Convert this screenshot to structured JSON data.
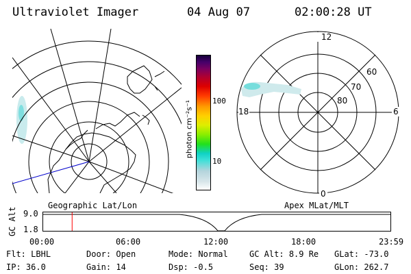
{
  "header": {
    "title": "Ultraviolet Imager",
    "date": "04 Aug 07",
    "time": "02:00:28 UT"
  },
  "geo_panel": {
    "caption": "Geographic Lat/Lon"
  },
  "colorbar": {
    "unit_label": "photon cm⁻²s⁻¹",
    "tick_100": "100",
    "tick_10": "10",
    "colors": [
      "#ffffff",
      "#d8e6ea",
      "#b4d4dc",
      "#3ee0d8",
      "#10d2c6",
      "#22e01c",
      "#88ee00",
      "#ddee00",
      "#ffd000",
      "#ff9a00",
      "#ff3a00",
      "#dd0000",
      "#b00030",
      "#7a0060",
      "#46006a",
      "#16003a"
    ]
  },
  "apex_panel": {
    "caption": "Apex MLat/MLT",
    "mlt_labels": {
      "top": "12",
      "left": "18",
      "right": "6",
      "bottom": "0"
    },
    "mlat_labels": [
      "60",
      "70",
      "80"
    ]
  },
  "timeline": {
    "y_axis_label": "GC Alt",
    "y_max": "9.0",
    "y_min": "1.8",
    "x_ticks": [
      "00:00",
      "06:00",
      "12:00",
      "18:00",
      "23:59"
    ],
    "current_time_fraction": 0.0834,
    "marker_color": "#ff0000"
  },
  "status": {
    "row1": [
      {
        "label": "Flt:",
        "value": "LBHL"
      },
      {
        "label": "Door:",
        "value": "Open"
      },
      {
        "label": "Mode:",
        "value": "Normal"
      },
      {
        "label": "GC Alt:",
        "value": "8.9 Re"
      },
      {
        "label": "GLat:",
        "value": "-73.0"
      }
    ],
    "row2": [
      {
        "label": "IP:",
        "value": "36.0"
      },
      {
        "label": "Gain:",
        "value": "14"
      },
      {
        "label": "Dsp:",
        "value": "-0.5"
      },
      {
        "label": "Seq:",
        "value": "39"
      },
      {
        "label": "GLon:",
        "value": "262.7"
      }
    ]
  }
}
